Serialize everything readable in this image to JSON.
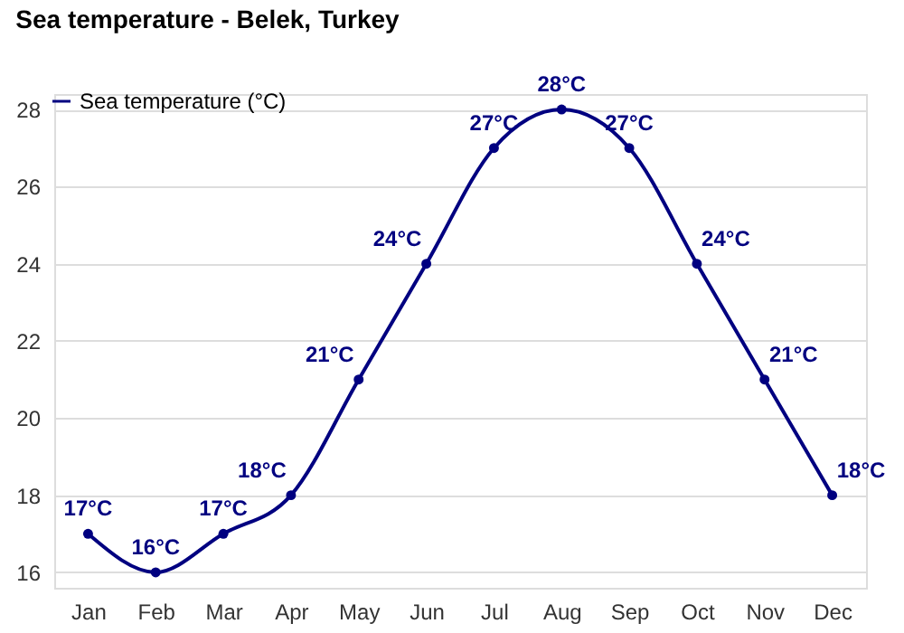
{
  "chart_data": {
    "type": "line",
    "title": "Sea temperature - Belek, Turkey",
    "categories": [
      "Jan",
      "Feb",
      "Mar",
      "Apr",
      "May",
      "Jun",
      "Jul",
      "Aug",
      "Sep",
      "Oct",
      "Nov",
      "Dec"
    ],
    "series": [
      {
        "name": "Sea temperature (°C)",
        "color": "#000080",
        "values": [
          17,
          16,
          17,
          18,
          21,
          24,
          27,
          28,
          27,
          24,
          21,
          18
        ],
        "value_labels": [
          "17°C",
          "16°C",
          "17°C",
          "18°C",
          "21°C",
          "24°C",
          "27°C",
          "28°C",
          "27°C",
          "24°C",
          "21°C",
          "18°C"
        ]
      }
    ],
    "ylim": [
      15.6,
      28.4
    ],
    "yticks": [
      16,
      18,
      20,
      22,
      24,
      26,
      28
    ],
    "grid": "y",
    "legend": "top left",
    "marker": "circle",
    "line_style": "solid"
  }
}
